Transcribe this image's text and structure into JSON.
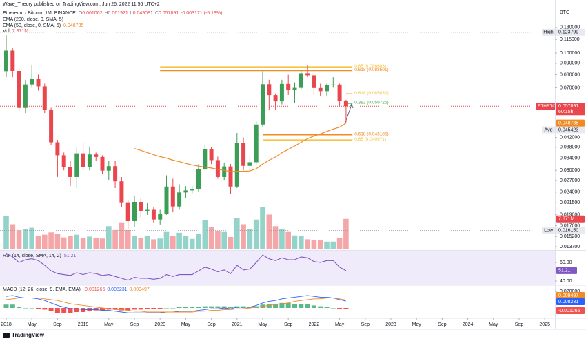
{
  "header": {
    "publisher": "Wave_Theory published on TradingView.com, Jun 26, 2022 11:56 UTC+2",
    "symbol": "Ethereum / Bitcoin, 1M, BINANCE",
    "ohlc_labels": [
      "O",
      "H",
      "L",
      "C"
    ],
    "change": "-0.003171 (-5.18%)",
    "ema200": "EMA (200, close, 0, SMA, 5)",
    "currency": "BTC",
    "brand": "TradingView"
  },
  "chart_data": [
    {
      "type": "candlestick",
      "x": [
        "2018-01",
        "2018-02",
        "2018-03",
        "2018-04",
        "2018-05",
        "2018-06",
        "2018-07",
        "2018-08",
        "2018-09",
        "2018-10",
        "2018-11",
        "2018-12",
        "2019-01",
        "2019-02",
        "2019-03",
        "2019-04",
        "2019-05",
        "2019-06",
        "2019-07",
        "2019-08",
        "2019-09",
        "2019-10",
        "2019-11",
        "2019-12",
        "2020-01",
        "2020-02",
        "2020-03",
        "2020-04",
        "2020-05",
        "2020-06",
        "2020-07",
        "2020-08",
        "2020-09",
        "2020-10",
        "2020-11",
        "2020-12",
        "2021-01",
        "2021-02",
        "2021-03",
        "2021-04",
        "2021-05",
        "2021-06",
        "2021-07",
        "2021-08",
        "2021-09",
        "2021-10",
        "2021-11",
        "2021-12",
        "2022-01",
        "2022-02",
        "2022-03",
        "2022-04",
        "2022-05",
        "2022-06"
      ],
      "open": [
        0.083,
        0.1025,
        0.0832,
        0.0569,
        0.0724,
        0.077,
        0.071,
        0.0557,
        0.04,
        0.035,
        0.031,
        0.028,
        0.0357,
        0.031,
        0.0353,
        0.0344,
        0.0299,
        0.0313,
        0.0268,
        0.0216,
        0.0178,
        0.0217,
        0.0198,
        0.02,
        0.0181,
        0.0191,
        0.0254,
        0.0207,
        0.0239,
        0.0244,
        0.0247,
        0.0304,
        0.0372,
        0.0333,
        0.028,
        0.0312,
        0.0254,
        0.0397,
        0.0314,
        0.0326,
        0.048,
        0.0726,
        0.0649,
        0.0609,
        0.0728,
        0.0685,
        0.0699,
        0.0812,
        0.0795,
        0.0698,
        0.0676,
        0.0721,
        0.0723,
        0.061062
      ],
      "high": [
        0.12,
        0.105,
        0.086,
        0.076,
        0.088,
        0.08,
        0.073,
        0.057,
        0.041,
        0.036,
        0.033,
        0.038,
        0.04,
        0.038,
        0.036,
        0.035,
        0.033,
        0.033,
        0.028,
        0.022,
        0.023,
        0.0225,
        0.0215,
        0.0205,
        0.02,
        0.0285,
        0.0275,
        0.026,
        0.0255,
        0.0255,
        0.032,
        0.039,
        0.038,
        0.0345,
        0.0325,
        0.032,
        0.044,
        0.042,
        0.035,
        0.05,
        0.083,
        0.076,
        0.066,
        0.076,
        0.08,
        0.074,
        0.084,
        0.088,
        0.081,
        0.073,
        0.073,
        0.078,
        0.073,
        0.061921
      ],
      "low": [
        0.078,
        0.078,
        0.055,
        0.054,
        0.07,
        0.068,
        0.054,
        0.039,
        0.028,
        0.03,
        0.0255,
        0.025,
        0.03,
        0.03,
        0.033,
        0.029,
        0.027,
        0.025,
        0.0205,
        0.0165,
        0.0168,
        0.0185,
        0.019,
        0.0175,
        0.0172,
        0.019,
        0.0195,
        0.02,
        0.0225,
        0.0235,
        0.024,
        0.03,
        0.032,
        0.0275,
        0.027,
        0.0235,
        0.025,
        0.03,
        0.0295,
        0.032,
        0.047,
        0.056,
        0.056,
        0.059,
        0.065,
        0.06,
        0.069,
        0.078,
        0.065,
        0.064,
        0.064,
        0.07,
        0.058,
        0.049081
      ],
      "close": [
        0.1025,
        0.0832,
        0.0569,
        0.0724,
        0.077,
        0.071,
        0.0557,
        0.04,
        0.035,
        0.031,
        0.028,
        0.0357,
        0.031,
        0.0353,
        0.0344,
        0.0299,
        0.0313,
        0.0268,
        0.0216,
        0.0178,
        0.0217,
        0.0198,
        0.02,
        0.0181,
        0.0191,
        0.0254,
        0.0207,
        0.0239,
        0.0244,
        0.0247,
        0.0304,
        0.0372,
        0.0333,
        0.028,
        0.0312,
        0.0254,
        0.0397,
        0.0314,
        0.0326,
        0.048,
        0.0726,
        0.0649,
        0.0609,
        0.0728,
        0.0685,
        0.0699,
        0.0812,
        0.0795,
        0.0698,
        0.0676,
        0.0721,
        0.0723,
        0.0611,
        0.057891
      ],
      "up_color": "#3c9d56",
      "down_color": "#e9474d",
      "log_scale": true,
      "ylim": [
        0.01332,
        0.1629
      ],
      "yticks": [
        {
          "value": 0.13,
          "label": "0.130000"
        },
        {
          "value": 0.115,
          "label": "0.115000"
        },
        {
          "value": 0.1,
          "label": "0.100000"
        },
        {
          "value": 0.09,
          "label": "0.090000"
        },
        {
          "value": 0.08,
          "label": "0.080000"
        },
        {
          "value": 0.07,
          "label": "0.070000"
        },
        {
          "value": 0.042,
          "label": "0.042000"
        },
        {
          "value": 0.038,
          "label": "0.038000"
        },
        {
          "value": 0.034,
          "label": "0.034000"
        },
        {
          "value": 0.03,
          "label": "0.030000"
        },
        {
          "value": 0.027,
          "label": "0.027000"
        },
        {
          "value": 0.024,
          "label": "0.024000"
        },
        {
          "value": 0.0215,
          "label": "0.021500"
        },
        {
          "value": 0.019,
          "label": "0.019000"
        },
        {
          "value": 0.017,
          "label": "0.017000"
        },
        {
          "value": 0.0152,
          "label": "0.015200"
        },
        {
          "value": 0.0137,
          "label": "0.013700"
        }
      ],
      "xticks": [
        {
          "value": "2018-01",
          "label": "2018"
        },
        {
          "value": "2018-05",
          "label": "May"
        },
        {
          "value": "2018-09",
          "label": "Sep"
        },
        {
          "value": "2019-01",
          "label": "2019"
        },
        {
          "value": "2019-05",
          "label": "May"
        },
        {
          "value": "2019-09",
          "label": "Sep"
        },
        {
          "value": "2020-01",
          "label": "2020"
        },
        {
          "value": "2020-05",
          "label": "May"
        },
        {
          "value": "2020-09",
          "label": "Sep"
        },
        {
          "value": "2021-01",
          "label": "2021"
        },
        {
          "value": "2021-05",
          "label": "May"
        },
        {
          "value": "2021-09",
          "label": "Sep"
        },
        {
          "value": "2022-01",
          "label": "2022"
        },
        {
          "value": "2022-05",
          "label": "May"
        },
        {
          "value": "2022-09",
          "label": "Sep"
        },
        {
          "value": "2023-01",
          "label": "2023"
        },
        {
          "value": "2023-05",
          "label": "May"
        },
        {
          "value": "2023-09",
          "label": "Sep"
        },
        {
          "value": "2024-01",
          "label": "2024"
        },
        {
          "value": "2024-05",
          "label": "May"
        },
        {
          "value": "2024-09",
          "label": "Sep"
        },
        {
          "value": "2025-01",
          "label": "2025"
        }
      ],
      "series": [
        {
          "name": "EMA (50, close, 0, SMA, 5)",
          "color": "#f08a24",
          "values": [
            null,
            null,
            null,
            null,
            null,
            null,
            null,
            null,
            null,
            null,
            null,
            null,
            null,
            null,
            null,
            null,
            null,
            null,
            null,
            null,
            0.0375,
            0.0368,
            0.036,
            0.0352,
            0.0345,
            0.034,
            0.0333,
            0.0328,
            0.0322,
            0.0317,
            0.0313,
            0.031,
            0.0307,
            0.0303,
            0.03,
            0.0296,
            0.0297,
            0.0297,
            0.0298,
            0.0305,
            0.032,
            0.0333,
            0.0344,
            0.0359,
            0.0372,
            0.0385,
            0.04,
            0.0415,
            0.0426,
            0.0436,
            0.0447,
            0.0458,
            0.0467,
            0.048735
          ]
        }
      ],
      "levels": [
        {
          "label": "0.65 (0.086683)",
          "value": 0.086683,
          "color": "#f6c445",
          "from": "2020-01",
          "to": "2022-07"
        },
        {
          "label": "0.618 (0.083501)",
          "value": 0.083501,
          "color": "#f08a24",
          "from": "2020-01",
          "to": "2022-07"
        },
        {
          "label": "0.618 (0.065832)",
          "value": 0.065832,
          "color": "#f6c445",
          "from": "2022-06",
          "to": "2022-07"
        },
        {
          "label": "0.382 (0.059725)",
          "value": 0.059725,
          "color": "#4caf50",
          "from": "2022-06",
          "to": "2022-07"
        },
        {
          "label": "0.618 (0.043185)",
          "value": 0.043185,
          "color": "#f08a24",
          "from": "2021-05",
          "to": "2022-07"
        },
        {
          "label": "0.65 (0.040971)",
          "value": 0.040971,
          "color": "#f6c445",
          "from": "2021-05",
          "to": "2022-07"
        }
      ],
      "price_labels": [
        {
          "name": "High",
          "value": 0.123799,
          "label": "0.123799"
        },
        {
          "name": "Avg",
          "value": 0.045423,
          "label": "0.045423"
        },
        {
          "name": "Low",
          "value": 0.01615,
          "label": "0.016150"
        }
      ],
      "symbol_label": "ETHBTC",
      "countdown": "60:15h"
    },
    {
      "type": "bar",
      "name": "Vol",
      "values": [
        8.6,
        6.5,
        5.0,
        5.2,
        5.6,
        3.5,
        3.8,
        4.4,
        4.0,
        3.1,
        3.4,
        3.8,
        3.0,
        3.3,
        3.0,
        2.8,
        6.0,
        5.0,
        7.0,
        5.0,
        3.5,
        3.0,
        3.4,
        2.6,
        2.8,
        4.5,
        3.5,
        4.3,
        3.5,
        2.7,
        4.0,
        7.5,
        5.8,
        4.8,
        4.5,
        3.2,
        8.0,
        6.5,
        5.2,
        7.7,
        11.0,
        9.0,
        6.0,
        5.2,
        4.5,
        3.6,
        3.4,
        2.6,
        2.5,
        2.3,
        2.0,
        2.0,
        3.0,
        7.871
      ],
      "last_value_label": "7.871M",
      "up_color": "#93d3ca",
      "down_color": "#f5a6a8",
      "ylim": [
        0,
        63
      ]
    },
    {
      "type": "line",
      "title": "RSI (14, close, SMA, 14, 2)",
      "color": "#7e57c2",
      "values": [
        70,
        66,
        60,
        63,
        64,
        62,
        57,
        51,
        48,
        47,
        46,
        49,
        47,
        49,
        48,
        46,
        47,
        45,
        43,
        41,
        44,
        43,
        43,
        42,
        43,
        47,
        45,
        47,
        47,
        47,
        51,
        55,
        53,
        50,
        52,
        48,
        57,
        52,
        53,
        60,
        68,
        64,
        62,
        65,
        63,
        63,
        66,
        65,
        61,
        60,
        62,
        62,
        55,
        51.21
      ],
      "ylim": [
        36.3,
        72.6
      ],
      "yticks": [
        {
          "value": 40,
          "label": "40.00"
        },
        {
          "value": 60,
          "label": "60.00"
        }
      ]
    },
    {
      "type": "macd",
      "title": "MACD (12, 26, close, 9, EMA, EMA)",
      "histogram": {
        "up_color": "#5cb88a",
        "down_color": "#ef5350",
        "values": [
          0.004,
          0.004,
          0.001,
          0,
          0,
          -0.001,
          -0.002,
          -0.004,
          -0.006,
          -0.006,
          -0.006,
          -0.005,
          -0.005,
          -0.004,
          -0.003,
          -0.003,
          -0.002,
          -0.002,
          -0.003,
          -0.003,
          -0.002,
          -0.002,
          -0.001,
          -0.001,
          -0.001,
          0,
          0,
          0.001,
          0.001,
          0.001,
          0.001,
          0.002,
          0.002,
          0.002,
          0.002,
          0.001,
          0.002,
          0.002,
          0.001,
          0.002,
          0.004,
          0.005,
          0.005,
          0.006,
          0.006,
          0.005,
          0.005,
          0.005,
          0.003,
          0.002,
          0.001,
          0,
          -0.001,
          -0.001266
        ]
      },
      "macd": {
        "color": "#2962ff",
        "values": [
          0.014,
          0.015,
          0.013,
          0.012,
          0.012,
          0.011,
          0.009,
          0.006,
          0.003,
          0.001,
          -0.001,
          -0.001,
          -0.002,
          -0.002,
          -0.002,
          -0.003,
          -0.003,
          -0.004,
          -0.005,
          -0.006,
          -0.006,
          -0.006,
          -0.006,
          -0.006,
          -0.006,
          -0.005,
          -0.005,
          -0.004,
          -0.004,
          -0.004,
          -0.003,
          -0.002,
          -0.001,
          -0.001,
          0,
          -0.001,
          0.001,
          0.001,
          0.001,
          0.003,
          0.006,
          0.008,
          0.009,
          0.011,
          0.012,
          0.013,
          0.014,
          0.015,
          0.014,
          0.013,
          0.013,
          0.012,
          0.01,
          0.008231
        ]
      },
      "signal": {
        "color": "#f08a24",
        "values": [
          0.01,
          0.011,
          0.012,
          0.012,
          0.012,
          0.012,
          0.011,
          0.01,
          0.009,
          0.007,
          0.005,
          0.004,
          0.003,
          0.002,
          0.001,
          0,
          -0.001,
          -0.002,
          -0.002,
          -0.003,
          -0.004,
          -0.004,
          -0.005,
          -0.005,
          -0.005,
          -0.005,
          -0.005,
          -0.005,
          -0.005,
          -0.005,
          -0.004,
          -0.004,
          -0.003,
          -0.003,
          -0.002,
          -0.002,
          -0.001,
          -0.001,
          0,
          0.001,
          0.002,
          0.003,
          0.004,
          0.005,
          0.006,
          0.008,
          0.009,
          0.01,
          0.011,
          0.011,
          0.012,
          0.012,
          0.011,
          0.009497
        ]
      },
      "ylim": [
        -0.0125,
        0.0267
      ],
      "yticks": [
        {
          "value": 0.02,
          "label": "0.020000"
        }
      ]
    }
  ]
}
